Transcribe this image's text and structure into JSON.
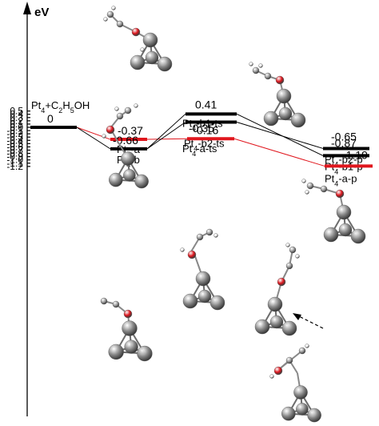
{
  "axis": {
    "unit": "eV",
    "ticks": [
      "0.5",
      "0.4",
      "0.3",
      "0.2",
      "0.1",
      "0.0",
      "-0.1",
      "-0.2",
      "-0.3",
      "-0.4",
      "-0.5",
      "-0.6",
      "-0.7",
      "-0.8",
      "-0.9",
      "-1.0",
      "-1.1",
      "-1.2"
    ]
  },
  "levels": [
    {
      "id": "reactant",
      "value": "0",
      "name_main": "Pt",
      "name_sub": "4",
      "name_rest": "+C",
      "name_sub2": "2",
      "name_rest2": "H",
      "name_sub3": "5",
      "name_rest3": "OH",
      "color": "#000000"
    },
    {
      "id": "pt4-a",
      "value": "-0.37",
      "name_main": "Pt",
      "name_sub": "4",
      "name_rest": "-a",
      "color": "#e0161d"
    },
    {
      "id": "pt4-b",
      "value": "-0.66",
      "name_main": "Pt",
      "name_sub": "4",
      "name_rest": "-b",
      "color": "#000000"
    },
    {
      "id": "pt4-b1-ts",
      "value": "0.41",
      "name_main": "Pt",
      "name_sub": "4",
      "name_rest": "-b1-ts",
      "color": "#000000"
    },
    {
      "id": "pt4-b2-ts",
      "value": "0.16",
      "name_main": "Pt",
      "name_sub": "4",
      "name_rest": "-b2-ts",
      "color": "#000000"
    },
    {
      "id": "pt4-a-ts",
      "value": "-0.35",
      "name_main": "Pt",
      "name_sub": "4",
      "name_rest": "-a-ts",
      "color": "#e0161d"
    },
    {
      "id": "pt4-b2-p",
      "value": "-0.65",
      "name_main": "Pt",
      "name_sub": "4",
      "name_rest": "-b2-p",
      "color": "#000000"
    },
    {
      "id": "pt4-b1-p",
      "value": "-0.87",
      "name_main": "Pt",
      "name_sub": "4",
      "name_rest": "-b1-p",
      "color": "#000000"
    },
    {
      "id": "pt4-a-p",
      "value": "-1.19",
      "name_main": "Pt",
      "name_sub": "4",
      "name_rest": "-a-p",
      "color": "#e0161d"
    }
  ],
  "paths": [
    {
      "from": "reactant",
      "to": "pt4-a",
      "color": "#e0161d"
    },
    {
      "from": "pt4-a",
      "to": "pt4-a-ts",
      "color": "#e0161d"
    },
    {
      "from": "pt4-a-ts",
      "to": "pt4-a-p",
      "color": "#e0161d"
    },
    {
      "from": "reactant",
      "to": "pt4-b",
      "color": "#000000"
    },
    {
      "from": "pt4-b",
      "to": "pt4-b1-ts",
      "color": "#000000"
    },
    {
      "from": "pt4-b",
      "to": "pt4-b2-ts",
      "color": "#000000"
    },
    {
      "from": "pt4-b1-ts",
      "to": "pt4-b1-p",
      "color": "#000000"
    },
    {
      "from": "pt4-b2-ts",
      "to": "pt4-b2-p",
      "color": "#000000"
    }
  ],
  "colors": {
    "red_path": "#e0161d",
    "pt_atom": "#8a8a8a",
    "o_atom": "#e0161d",
    "c_atom": "#9c9c9c",
    "h_atom": "#f2f2f2"
  }
}
